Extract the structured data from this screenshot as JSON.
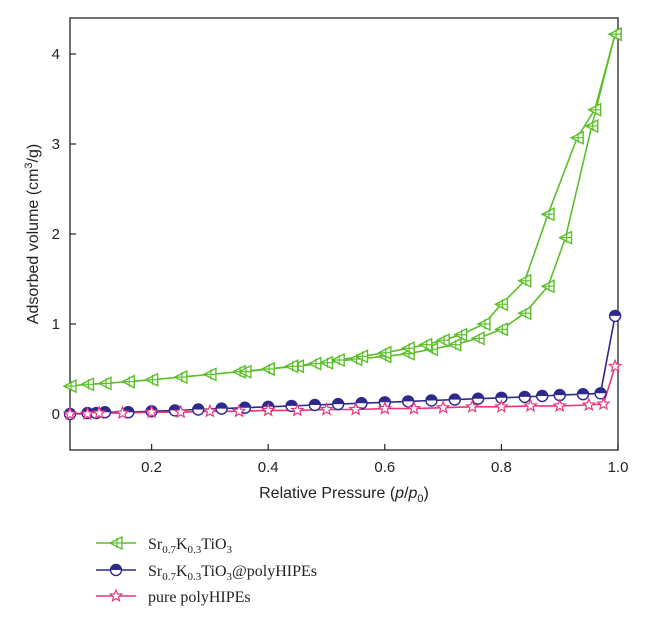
{
  "chart_data": {
    "type": "line",
    "xlabel": "Relative Pressure (p/p0)",
    "ylabel": "Adsorbed volume (cm3/g)",
    "xlim": [
      0.06,
      1.0
    ],
    "ylim": [
      -0.4,
      4.4
    ],
    "xticks": [
      "0.2",
      "0.4",
      "0.6",
      "0.8",
      "1.0"
    ],
    "xtick_values": [
      0.2,
      0.4,
      0.6,
      0.8,
      1.0
    ],
    "yticks": [
      "0",
      "1",
      "2",
      "3",
      "4"
    ],
    "ytick_values": [
      0,
      1,
      2,
      3,
      4
    ],
    "grid": false,
    "legend_position": "bottom",
    "series": [
      {
        "name": "Sr0.7K0.3TiO3",
        "color": "#5cbf2a",
        "marker": "left-triangle-cross",
        "branches": [
          {
            "label": "adsorption",
            "x": [
              0.06,
              0.09,
              0.12,
              0.16,
              0.2,
              0.25,
              0.3,
              0.35,
              0.4,
              0.45,
              0.5,
              0.55,
              0.6,
              0.64,
              0.68,
              0.72,
              0.76,
              0.8,
              0.84,
              0.88,
              0.91,
              0.955,
              0.995
            ],
            "y": [
              0.31,
              0.33,
              0.34,
              0.36,
              0.38,
              0.41,
              0.44,
              0.47,
              0.5,
              0.53,
              0.57,
              0.61,
              0.64,
              0.67,
              0.72,
              0.77,
              0.84,
              0.94,
              1.12,
              1.42,
              1.96,
              3.2,
              4.22
            ]
          },
          {
            "label": "desorption",
            "x": [
              0.995,
              0.96,
              0.93,
              0.88,
              0.84,
              0.8,
              0.77,
              0.73,
              0.7,
              0.67,
              0.64,
              0.6,
              0.56,
              0.52,
              0.48,
              0.44,
              0.4,
              0.36
            ],
            "y": [
              4.22,
              3.38,
              3.07,
              2.22,
              1.48,
              1.22,
              1.0,
              0.88,
              0.82,
              0.77,
              0.73,
              0.68,
              0.64,
              0.6,
              0.56,
              0.53,
              0.5,
              0.47
            ]
          }
        ]
      },
      {
        "name": "Sr0.7K0.3TiO3@polyHIPEs",
        "color": "#2e2a8c",
        "marker": "half-filled-circle",
        "branches": [
          {
            "label": "adsorption",
            "x": [
              0.06,
              0.09,
              0.105,
              0.12,
              0.16,
              0.2,
              0.24,
              0.28,
              0.32,
              0.36,
              0.4,
              0.44,
              0.48,
              0.52,
              0.56,
              0.6,
              0.64,
              0.68,
              0.72,
              0.76,
              0.8,
              0.84,
              0.87,
              0.9,
              0.94,
              0.97,
              0.995
            ],
            "y": [
              0.0,
              0.01,
              0.01,
              0.02,
              0.02,
              0.03,
              0.04,
              0.05,
              0.06,
              0.07,
              0.08,
              0.09,
              0.1,
              0.11,
              0.12,
              0.13,
              0.14,
              0.15,
              0.16,
              0.17,
              0.18,
              0.19,
              0.2,
              0.21,
              0.22,
              0.23,
              1.09
            ]
          }
        ]
      },
      {
        "name": "pure polyHIPEs",
        "color": "#e8377f",
        "marker": "open-star",
        "branches": [
          {
            "label": "adsorption",
            "x": [
              0.06,
              0.09,
              0.11,
              0.15,
              0.2,
              0.25,
              0.3,
              0.35,
              0.4,
              0.45,
              0.5,
              0.55,
              0.6,
              0.65,
              0.7,
              0.75,
              0.8,
              0.85,
              0.9,
              0.95,
              0.975,
              0.995
            ],
            "y": [
              0.0,
              0.0,
              0.01,
              0.01,
              0.02,
              0.02,
              0.03,
              0.03,
              0.04,
              0.04,
              0.05,
              0.05,
              0.06,
              0.06,
              0.07,
              0.08,
              0.08,
              0.09,
              0.09,
              0.1,
              0.11,
              0.53
            ]
          }
        ]
      }
    ]
  },
  "legend": {
    "entries": [
      {
        "base": "Sr",
        "s1": "0.7",
        "mid": "K",
        "s2": "0.3",
        "tail": "TiO",
        "s3": "3",
        "extra": ""
      },
      {
        "base": "Sr",
        "s1": "0.7",
        "mid": "K",
        "s2": "0.3",
        "tail": "TiO",
        "s3": "3",
        "extra": "@polyHIPEs"
      },
      {
        "text": "pure polyHIPEs"
      }
    ]
  },
  "xlabel_parts": {
    "pre": "Relative Pressure (",
    "p": "p",
    "slash": "/",
    "p0": "p",
    "zero": "0",
    "post": ")"
  },
  "ylabel_parts": {
    "pre": "Adsorbed volume (cm",
    "sup": "3",
    "post": "/g)"
  }
}
